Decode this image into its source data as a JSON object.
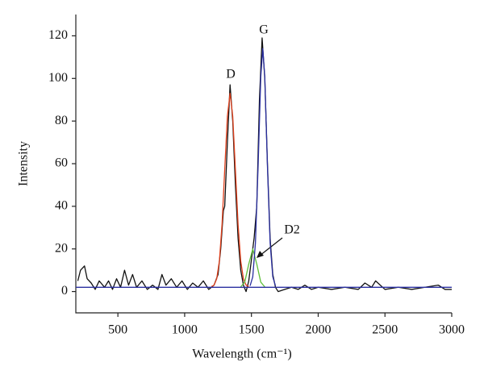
{
  "chart_data": {
    "type": "line",
    "xlabel": "Wavelength (cm⁻¹)",
    "ylabel": "Intensity",
    "xlim": [
      185,
      3000
    ],
    "ylim": [
      -10,
      130
    ],
    "xticks": [
      500,
      1000,
      1500,
      2000,
      2500,
      3000
    ],
    "yticks": [
      0,
      20,
      40,
      60,
      80,
      100,
      120
    ],
    "annotations": [
      "D",
      "G",
      "D2"
    ],
    "series": [
      {
        "color": "#111111",
        "x": [
          200,
          220,
          250,
          270,
          300,
          330,
          360,
          400,
          430,
          460,
          490,
          520,
          550,
          580,
          610,
          640,
          680,
          720,
          760,
          800,
          830,
          860,
          900,
          940,
          980,
          1020,
          1060,
          1100,
          1140,
          1180,
          1220,
          1250,
          1270,
          1290,
          1300,
          1320,
          1340,
          1360,
          1380,
          1400,
          1420,
          1440,
          1460,
          1480,
          1500,
          1520,
          1540,
          1560,
          1580,
          1600,
          1620,
          1640,
          1660,
          1680,
          1700,
          1750,
          1800,
          1850,
          1900,
          1950,
          2000,
          2100,
          2200,
          2300,
          2350,
          2400,
          2430,
          2500,
          2600,
          2700,
          2800,
          2900,
          2950,
          3000
        ],
        "values": [
          5,
          10,
          12,
          6,
          4,
          1,
          5,
          2,
          5,
          1,
          6,
          2,
          10,
          3,
          8,
          2,
          5,
          1,
          3,
          1,
          8,
          3,
          6,
          2,
          5,
          1,
          4,
          2,
          5,
          1,
          3,
          8,
          20,
          38,
          40,
          70,
          97,
          80,
          50,
          25,
          10,
          3,
          0,
          5,
          15,
          25,
          40,
          90,
          119,
          100,
          60,
          25,
          8,
          2,
          0,
          1,
          2,
          1,
          3,
          1,
          2,
          1,
          2,
          1,
          4,
          2,
          5,
          1,
          2,
          1,
          2,
          3,
          1,
          1
        ]
      },
      {
        "color": "#e0401c",
        "x": [
          1200,
          1220,
          1240,
          1260,
          1280,
          1300,
          1320,
          1340,
          1360,
          1380,
          1400,
          1420,
          1440,
          1460,
          1480
        ],
        "values": [
          2.3,
          3.0,
          6.0,
          14.3,
          31.6,
          57.2,
          82.3,
          93,
          82.3,
          57.2,
          31.6,
          14.3,
          6.0,
          3.0,
          2.3
        ]
      },
      {
        "color": "#5fbf3a",
        "x": [
          1420,
          1450,
          1480,
          1510,
          1540,
          1570,
          1600
        ],
        "values": [
          2.2,
          4.4,
          12.9,
          20,
          12.9,
          4.4,
          2.2
        ]
      },
      {
        "color": "#2a2fa0",
        "x": [
          1490,
          1510,
          1530,
          1550,
          1570,
          1585,
          1600,
          1620,
          1640,
          1660,
          1680
        ],
        "values": [
          2.7,
          6.9,
          22.8,
          58.7,
          100.8,
          114,
          100.8,
          58.7,
          22.8,
          6.9,
          2.7
        ]
      },
      {
        "color": "#2a2fa0",
        "x": [
          185,
          3000
        ],
        "values": [
          2,
          2
        ]
      }
    ]
  }
}
